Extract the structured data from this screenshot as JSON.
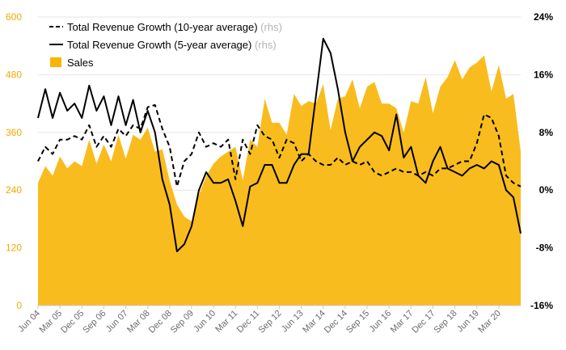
{
  "chart_data": {
    "type": "area",
    "colors": {
      "sales": "#F7B500",
      "sales_fill": "#F9BC1E",
      "left_axis": "#F0AA00",
      "lines": "#000000",
      "legend_rhs": "#b5b5b5",
      "x_ticks": "#6b6b6b"
    },
    "legend": [
      {
        "key": "ten_year",
        "label": "Total Revenue Growth (10-year average)",
        "suffix": "(rhs)",
        "style": "dashed"
      },
      {
        "key": "five_year",
        "label": "Total Revenue Growth (5-year average)",
        "suffix": "(rhs)",
        "style": "solid"
      },
      {
        "key": "sales",
        "label": "Sales",
        "suffix": "",
        "style": "area"
      }
    ],
    "legend_position": "top-left",
    "grid": true,
    "y_left": {
      "ylim": [
        0,
        600
      ],
      "ticks": [
        0,
        120,
        240,
        360,
        480,
        600
      ],
      "tick_labels": [
        "0",
        "120",
        "240",
        "360",
        "480",
        "600"
      ]
    },
    "y_right": {
      "ylim": [
        -16,
        24
      ],
      "ticks": [
        -16,
        -8,
        0,
        8,
        16,
        24
      ],
      "tick_labels": [
        "-16%",
        "-8%",
        "0%",
        "8%",
        "16%",
        "24%"
      ]
    },
    "x_tick_labels": [
      "Jun 04",
      "Mar 05",
      "Dec 05",
      "Sep 06",
      "Jun 07",
      "Mar 08",
      "Dec 08",
      "Sep 09",
      "Jun 10",
      "Mar 11",
      "Dec 11",
      "Sep 12",
      "Jun 13",
      "Mar 14",
      "Dec 14",
      "Sep 15",
      "Jun 16",
      "Mar 17",
      "Dec 17",
      "Sep 18",
      "Jun 19",
      "Mar 20"
    ],
    "x_tick_every": 3,
    "x_start": "Jun 04",
    "x_end": "Jun 20",
    "x_frequency": "quarterly",
    "series": [
      {
        "name": "Sales",
        "axis": "left",
        "values": [
          255,
          290,
          270,
          310,
          285,
          300,
          290,
          345,
          295,
          335,
          300,
          355,
          305,
          355,
          345,
          370,
          320,
          325,
          260,
          210,
          185,
          175,
          230,
          270,
          295,
          310,
          320,
          330,
          260,
          345,
          330,
          430,
          380,
          380,
          355,
          440,
          415,
          425,
          420,
          460,
          365,
          430,
          435,
          470,
          410,
          455,
          465,
          420,
          420,
          410,
          360,
          425,
          420,
          475,
          400,
          455,
          475,
          510,
          470,
          495,
          505,
          520,
          445,
          500,
          430,
          440,
          320
        ]
      },
      {
        "name": "Total Revenue Growth (10-year average)",
        "axis": "right",
        "values": [
          4,
          6,
          5,
          7,
          7,
          7.5,
          7,
          9,
          6,
          7.5,
          6,
          8.5,
          7.5,
          9,
          8.5,
          11.5,
          11.8,
          8.5,
          6,
          0.5,
          4,
          5,
          8,
          6,
          6.5,
          6,
          7,
          1.5,
          7,
          5,
          9,
          7.5,
          7,
          4.5,
          7,
          6.5,
          4,
          5,
          4,
          3.5,
          3.5,
          4.5,
          3.5,
          4,
          3.5,
          4,
          2.5,
          2,
          2.5,
          3,
          2.5,
          2.5,
          2,
          2.5,
          2,
          3,
          3,
          3.5,
          4,
          4,
          6.5,
          10.5,
          10,
          7.5,
          2,
          1,
          0.5
        ]
      },
      {
        "name": "Total Revenue Growth (5-year average)",
        "axis": "right",
        "values": [
          10,
          14,
          10,
          13.5,
          11,
          12,
          10,
          14.5,
          11,
          13,
          9,
          13,
          9,
          12.5,
          8,
          11,
          8,
          1.5,
          -2,
          -8.5,
          -7.5,
          -5,
          0,
          2.5,
          1,
          1,
          1.5,
          -1.5,
          -5,
          0.5,
          1,
          3.5,
          3.5,
          1,
          1,
          3.5,
          5,
          5,
          13,
          21,
          19,
          14,
          8,
          4,
          6,
          7,
          8,
          7.5,
          5.5,
          10.5,
          4.5,
          6,
          2,
          1,
          4,
          6,
          3,
          2.5,
          2,
          3,
          3.5,
          3,
          4,
          3.5,
          0,
          -1,
          -6
        ]
      }
    ]
  }
}
